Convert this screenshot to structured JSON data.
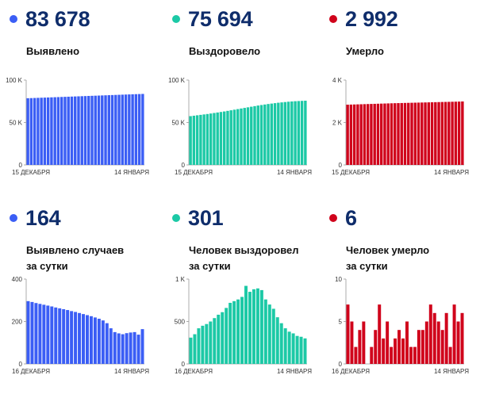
{
  "colors": {
    "blue": "#3b5ef5",
    "teal": "#1cc9a6",
    "red": "#d0021b",
    "number": "#0f2d6b"
  },
  "panels": [
    {
      "big_number": "83 678",
      "label_lines": [
        "Выявлено"
      ],
      "color": "#3b5ef5",
      "chart_data": {
        "type": "bar",
        "title": "",
        "x_first": "15 ДЕКАБРЯ",
        "x_last": "14 ЯНВАРЯ",
        "y_ticks": [
          {
            "v": 0,
            "label": "0"
          },
          {
            "v": 50000,
            "label": "50 K"
          },
          {
            "v": 100000,
            "label": "100 K"
          }
        ],
        "ylim": [
          0,
          100000
        ],
        "values": [
          78600,
          78750,
          78900,
          79050,
          79200,
          79350,
          79500,
          79650,
          79800,
          79950,
          80100,
          80250,
          80400,
          80550,
          80700,
          80850,
          81000,
          81150,
          81300,
          81450,
          81600,
          81750,
          81900,
          82050,
          82200,
          82350,
          82500,
          82650,
          82800,
          82950,
          83100,
          83250,
          83400,
          83540,
          83678
        ]
      }
    },
    {
      "big_number": "75 694",
      "label_lines": [
        "Выздоровело"
      ],
      "color": "#1cc9a6",
      "chart_data": {
        "type": "bar",
        "title": "",
        "x_first": "15 ДЕКАБРЯ",
        "x_last": "14 ЯНВАРЯ",
        "y_ticks": [
          {
            "v": 0,
            "label": "0"
          },
          {
            "v": 50000,
            "label": "50 K"
          },
          {
            "v": 100000,
            "label": "100 K"
          }
        ],
        "ylim": [
          0,
          100000
        ],
        "values": [
          57500,
          58000,
          58500,
          59000,
          59500,
          60000,
          60600,
          61200,
          61800,
          62400,
          63000,
          63700,
          64400,
          65100,
          65800,
          66500,
          67200,
          67900,
          68600,
          69300,
          70000,
          70600,
          71200,
          71800,
          72300,
          72800,
          73300,
          73700,
          74100,
          74500,
          74800,
          75100,
          75300,
          75500,
          75694
        ]
      }
    },
    {
      "big_number": "2 992",
      "label_lines": [
        "Умерло"
      ],
      "color": "#d0021b",
      "chart_data": {
        "type": "bar",
        "title": "",
        "x_first": "15 ДЕКАБРЯ",
        "x_last": "14 ЯНВАРЯ",
        "y_ticks": [
          {
            "v": 0,
            "label": "0"
          },
          {
            "v": 2000,
            "label": "2 K"
          },
          {
            "v": 4000,
            "label": "4 K"
          }
        ],
        "ylim": [
          0,
          4000
        ],
        "values": [
          2840,
          2845,
          2850,
          2855,
          2860,
          2865,
          2870,
          2875,
          2880,
          2885,
          2890,
          2895,
          2900,
          2905,
          2910,
          2914,
          2918,
          2922,
          2926,
          2930,
          2934,
          2938,
          2942,
          2946,
          2950,
          2954,
          2958,
          2962,
          2966,
          2970,
          2974,
          2978,
          2982,
          2986,
          2992
        ]
      }
    },
    {
      "big_number": "164",
      "label_lines": [
        "Выявлено случаев",
        "за сутки"
      ],
      "color": "#3b5ef5",
      "chart_data": {
        "type": "bar",
        "title": "",
        "x_first": "16 ДЕКАБРЯ",
        "x_last": "14 ЯНВАРЯ",
        "y_ticks": [
          {
            "v": 0,
            "label": "0"
          },
          {
            "v": 200,
            "label": "200"
          },
          {
            "v": 400,
            "label": "400"
          }
        ],
        "ylim": [
          0,
          400
        ],
        "values": [
          296,
          292,
          287,
          283,
          279,
          275,
          271,
          266,
          262,
          258,
          254,
          249,
          245,
          240,
          235,
          230,
          225,
          219,
          213,
          205,
          192,
          168,
          150,
          144,
          140,
          145,
          148,
          150,
          138,
          164
        ]
      }
    },
    {
      "big_number": "301",
      "label_lines": [
        "Человек выздоровел",
        "за сутки"
      ],
      "color": "#1cc9a6",
      "chart_data": {
        "type": "bar",
        "title": "",
        "x_first": "16 ДЕКАБРЯ",
        "x_last": "14 ЯНВАРЯ",
        "y_ticks": [
          {
            "v": 0,
            "label": "0"
          },
          {
            "v": 500,
            "label": "500"
          },
          {
            "v": 1000,
            "label": "1 K"
          }
        ],
        "ylim": [
          0,
          1000
        ],
        "values": [
          310,
          350,
          420,
          450,
          470,
          500,
          540,
          580,
          610,
          660,
          720,
          740,
          760,
          790,
          920,
          850,
          880,
          890,
          870,
          760,
          700,
          650,
          550,
          480,
          420,
          380,
          360,
          330,
          320,
          301
        ]
      }
    },
    {
      "big_number": "6",
      "label_lines": [
        "Человек умерло",
        "за сутки"
      ],
      "color": "#d0021b",
      "chart_data": {
        "type": "bar",
        "title": "",
        "x_first": "16 ДЕКАБРЯ",
        "x_last": "14 ЯНВАРЯ",
        "y_ticks": [
          {
            "v": 0,
            "label": "0"
          },
          {
            "v": 5,
            "label": "5"
          },
          {
            "v": 10,
            "label": "10"
          }
        ],
        "ylim": [
          0,
          10
        ],
        "values": [
          7,
          5,
          2,
          4,
          5,
          0,
          2,
          4,
          7,
          3,
          5,
          2,
          3,
          4,
          3,
          5,
          2,
          2,
          4,
          4,
          5,
          7,
          6,
          5,
          4,
          6,
          2,
          7,
          5,
          6
        ]
      }
    }
  ]
}
